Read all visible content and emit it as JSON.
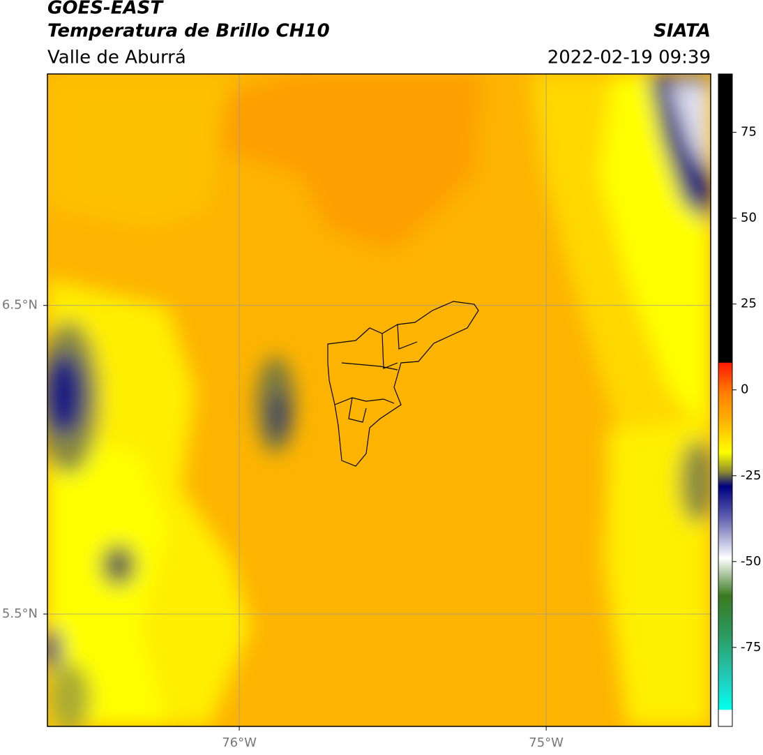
{
  "header": {
    "title": "GOES-EAST",
    "subtitle": "Temperatura de Brillo CH10",
    "region": "Valle de Aburrá",
    "source": "SIATA",
    "timestamp": "2022-02-19 09:39"
  },
  "map": {
    "xlim": [
      -76.625,
      -74.464
    ],
    "ylim": [
      5.136,
      7.25
    ],
    "xticks": [
      {
        "value": -76,
        "label": "76°W"
      },
      {
        "value": -75,
        "label": "75°W"
      }
    ],
    "yticks": [
      {
        "value": 6.5,
        "label": "6.5°N"
      },
      {
        "value": 5.5,
        "label": "5.5°N"
      }
    ],
    "grid": true
  },
  "colorbar": {
    "lim": [
      -98,
      92
    ],
    "ticks": [
      75,
      50,
      25,
      0,
      -25,
      -50,
      -75
    ]
  }
}
